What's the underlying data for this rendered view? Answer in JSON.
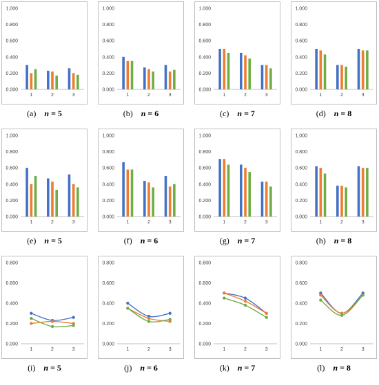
{
  "colors": {
    "series1": "#4472C4",
    "series2": "#ED7D31",
    "series3": "#70AD47"
  },
  "chart_data": [
    {
      "id": "a",
      "type": "bar",
      "caption_letter": "(a)",
      "caption_var": "n",
      "caption_eq": "=",
      "caption_value": "5",
      "categories": [
        "1",
        "2",
        "3"
      ],
      "ylim": [
        0,
        1
      ],
      "yticks": [
        "0.000",
        "0.200",
        "0.400",
        "0.600",
        "0.800",
        "1.000"
      ],
      "series": [
        {
          "values": [
            0.3,
            0.23,
            0.26
          ]
        },
        {
          "values": [
            0.2,
            0.22,
            0.2
          ]
        },
        {
          "values": [
            0.25,
            0.17,
            0.18
          ]
        }
      ]
    },
    {
      "id": "b",
      "type": "bar",
      "caption_letter": "(b)",
      "caption_var": "n",
      "caption_eq": "=",
      "caption_value": "6",
      "categories": [
        "1",
        "2",
        "3"
      ],
      "ylim": [
        0,
        1
      ],
      "yticks": [
        "0.000",
        "0.200",
        "0.400",
        "0.600",
        "0.800",
        "1.000"
      ],
      "series": [
        {
          "values": [
            0.4,
            0.27,
            0.3
          ]
        },
        {
          "values": [
            0.35,
            0.25,
            0.22
          ]
        },
        {
          "values": [
            0.35,
            0.22,
            0.24
          ]
        }
      ]
    },
    {
      "id": "c",
      "type": "bar",
      "caption_letter": "(c)",
      "caption_var": "n",
      "caption_eq": "=",
      "caption_value": "7",
      "categories": [
        "1",
        "2",
        "3"
      ],
      "ylim": [
        0,
        1
      ],
      "yticks": [
        "0.000",
        "0.200",
        "0.400",
        "0.600",
        "0.800",
        "1.000"
      ],
      "series": [
        {
          "values": [
            0.5,
            0.45,
            0.3
          ]
        },
        {
          "values": [
            0.5,
            0.42,
            0.3
          ]
        },
        {
          "values": [
            0.45,
            0.38,
            0.26
          ]
        }
      ]
    },
    {
      "id": "d",
      "type": "bar",
      "caption_letter": "(d)",
      "caption_var": "n",
      "caption_eq": "=",
      "caption_value": "8",
      "categories": [
        "1",
        "2",
        "3"
      ],
      "ylim": [
        0,
        1
      ],
      "yticks": [
        "0.000",
        "0.200",
        "0.400",
        "0.600",
        "0.800",
        "1.000"
      ],
      "series": [
        {
          "values": [
            0.5,
            0.3,
            0.5
          ]
        },
        {
          "values": [
            0.48,
            0.3,
            0.48
          ]
        },
        {
          "values": [
            0.43,
            0.28,
            0.48
          ]
        }
      ]
    },
    {
      "id": "e",
      "type": "bar",
      "caption_letter": "(e)",
      "caption_var": "n",
      "caption_eq": "=",
      "caption_value": "5",
      "categories": [
        "1",
        "2",
        "3"
      ],
      "ylim": [
        0,
        1
      ],
      "yticks": [
        "0.000",
        "0.200",
        "0.400",
        "0.600",
        "0.800",
        "1.000"
      ],
      "series": [
        {
          "values": [
            0.6,
            0.47,
            0.52
          ]
        },
        {
          "values": [
            0.4,
            0.43,
            0.4
          ]
        },
        {
          "values": [
            0.5,
            0.33,
            0.36
          ]
        }
      ]
    },
    {
      "id": "f",
      "type": "bar",
      "caption_letter": "(f)",
      "caption_var": "n",
      "caption_eq": "=",
      "caption_value": "6",
      "categories": [
        "1",
        "2",
        "3"
      ],
      "ylim": [
        0,
        1
      ],
      "yticks": [
        "0.000",
        "0.200",
        "0.400",
        "0.600",
        "0.800",
        "1.000"
      ],
      "series": [
        {
          "values": [
            0.67,
            0.44,
            0.5
          ]
        },
        {
          "values": [
            0.58,
            0.42,
            0.37
          ]
        },
        {
          "values": [
            0.58,
            0.36,
            0.4
          ]
        }
      ]
    },
    {
      "id": "g",
      "type": "bar",
      "caption_letter": "(g)",
      "caption_var": "n",
      "caption_eq": "=",
      "caption_value": "7",
      "categories": [
        "1",
        "2",
        "3"
      ],
      "ylim": [
        0,
        1
      ],
      "yticks": [
        "0.000",
        "0.200",
        "0.400",
        "0.600",
        "0.800",
        "1.000"
      ],
      "series": [
        {
          "values": [
            0.71,
            0.64,
            0.43
          ]
        },
        {
          "values": [
            0.71,
            0.6,
            0.43
          ]
        },
        {
          "values": [
            0.64,
            0.55,
            0.37
          ]
        }
      ]
    },
    {
      "id": "h",
      "type": "bar",
      "caption_letter": "(h)",
      "caption_var": "n",
      "caption_eq": "=",
      "caption_value": "8",
      "categories": [
        "1",
        "2",
        "3"
      ],
      "ylim": [
        0,
        1
      ],
      "yticks": [
        "0.000",
        "0.200",
        "0.400",
        "0.600",
        "0.800",
        "1.000"
      ],
      "series": [
        {
          "values": [
            0.62,
            0.38,
            0.62
          ]
        },
        {
          "values": [
            0.6,
            0.38,
            0.6
          ]
        },
        {
          "values": [
            0.53,
            0.36,
            0.6
          ]
        }
      ]
    },
    {
      "id": "i",
      "type": "line",
      "caption_letter": "(i)",
      "caption_var": "n",
      "caption_eq": "=",
      "caption_value": "5",
      "categories": [
        "1",
        "2",
        "3"
      ],
      "ylim": [
        0,
        0.8
      ],
      "yticks": [
        "0.000",
        "0.200",
        "0.400",
        "0.600",
        "0.800"
      ],
      "series": [
        {
          "values": [
            0.3,
            0.23,
            0.26
          ]
        },
        {
          "values": [
            0.2,
            0.22,
            0.2
          ]
        },
        {
          "values": [
            0.25,
            0.17,
            0.18
          ]
        }
      ]
    },
    {
      "id": "j",
      "type": "line",
      "caption_letter": "(j)",
      "caption_var": "n",
      "caption_eq": "=",
      "caption_value": "6",
      "categories": [
        "1",
        "2",
        "3"
      ],
      "ylim": [
        0,
        0.8
      ],
      "yticks": [
        "0.000",
        "0.200",
        "0.400",
        "0.600",
        "0.800"
      ],
      "series": [
        {
          "values": [
            0.4,
            0.27,
            0.3
          ]
        },
        {
          "values": [
            0.35,
            0.25,
            0.22
          ]
        },
        {
          "values": [
            0.35,
            0.22,
            0.24
          ]
        }
      ]
    },
    {
      "id": "k",
      "type": "line",
      "caption_letter": "(k)",
      "caption_var": "n",
      "caption_eq": "=",
      "caption_value": "7",
      "categories": [
        "1",
        "2",
        "3"
      ],
      "ylim": [
        0,
        0.8
      ],
      "yticks": [
        "0.000",
        "0.200",
        "0.400",
        "0.600",
        "0.800"
      ],
      "series": [
        {
          "values": [
            0.5,
            0.45,
            0.3
          ]
        },
        {
          "values": [
            0.5,
            0.42,
            0.3
          ]
        },
        {
          "values": [
            0.45,
            0.38,
            0.26
          ]
        }
      ]
    },
    {
      "id": "l",
      "type": "line",
      "caption_letter": "(l)",
      "caption_var": "n",
      "caption_eq": "=",
      "caption_value": "8",
      "categories": [
        "1",
        "2",
        "3"
      ],
      "ylim": [
        0,
        0.8
      ],
      "yticks": [
        "0.000",
        "0.200",
        "0.400",
        "0.600",
        "0.800"
      ],
      "series": [
        {
          "values": [
            0.5,
            0.3,
            0.5
          ]
        },
        {
          "values": [
            0.48,
            0.3,
            0.48
          ]
        },
        {
          "values": [
            0.43,
            0.28,
            0.48
          ]
        }
      ]
    }
  ]
}
